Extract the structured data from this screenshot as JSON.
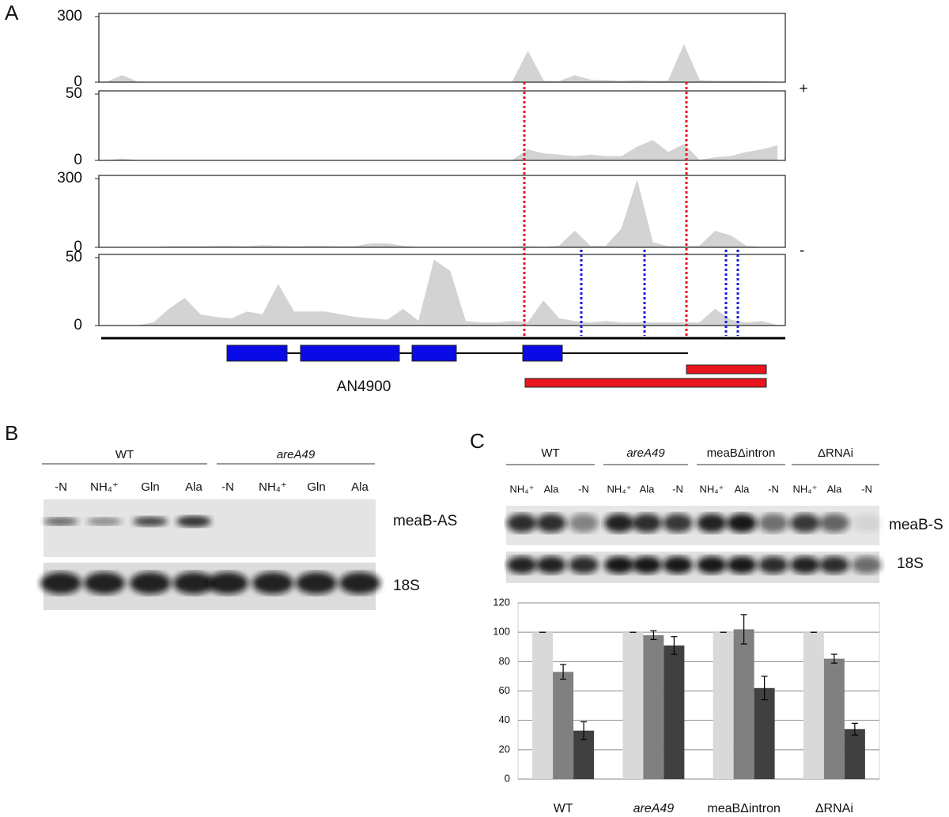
{
  "chart_data": [
    {
      "type": "area",
      "ylim": [
        0,
        300
      ],
      "yticks": [
        0,
        300
      ],
      "color": "#d3d3d3",
      "values": [
        0,
        30,
        0,
        0,
        0,
        0,
        0,
        0,
        0,
        0,
        0,
        0,
        0,
        0,
        0,
        0,
        0,
        0,
        0,
        0,
        0,
        0,
        0,
        0,
        0,
        0,
        0,
        140,
        5,
        3,
        30,
        10,
        8,
        5,
        8,
        5,
        5,
        170,
        8,
        5,
        5,
        5,
        4,
        0
      ]
    },
    {
      "type": "area",
      "ylim": [
        0,
        50
      ],
      "yticks": [
        0,
        50
      ],
      "color": "#d3d3d3",
      "values": [
        0,
        1,
        0,
        0,
        0,
        0,
        0,
        0,
        0,
        0,
        0,
        0,
        0,
        0,
        0,
        0,
        0,
        0,
        0,
        0,
        0,
        0,
        0,
        0,
        0,
        0,
        0,
        8,
        5,
        4,
        3,
        4,
        3,
        3,
        10,
        15,
        6,
        12,
        0,
        2,
        3,
        6,
        8,
        11
      ]
    },
    {
      "type": "area",
      "ylim": [
        0,
        300
      ],
      "yticks": [
        0,
        300
      ],
      "color": "#d3d3d3",
      "values": [
        0,
        0,
        0,
        0,
        3,
        3,
        3,
        5,
        5,
        3,
        8,
        5,
        3,
        5,
        5,
        3,
        5,
        15,
        15,
        5,
        0,
        0,
        0,
        0,
        0,
        0,
        0,
        3,
        0,
        5,
        70,
        5,
        5,
        80,
        290,
        20,
        3,
        3,
        5,
        70,
        50,
        5,
        0,
        0
      ]
    },
    {
      "type": "area",
      "ylim": [
        0,
        50
      ],
      "yticks": [
        0,
        50
      ],
      "color": "#d3d3d3",
      "values": [
        0,
        0,
        0,
        2,
        12,
        20,
        8,
        6,
        5,
        10,
        8,
        30,
        10,
        10,
        10,
        8,
        6,
        5,
        4,
        12,
        3,
        48,
        40,
        3,
        2,
        2,
        3,
        2,
        18,
        5,
        3,
        2,
        3,
        2,
        2,
        2,
        2,
        2,
        2,
        12,
        4,
        2,
        3,
        0
      ]
    },
    {
      "type": "bar",
      "categories": [
        "WT",
        "areA49",
        "meaBΔintron",
        "ΔRNAi"
      ],
      "ylim": [
        0,
        120
      ],
      "yticks": [
        0,
        20,
        40,
        60,
        80,
        100,
        120
      ],
      "grid": true,
      "series": [
        {
          "color": "#d9d9d9",
          "values": [
            100,
            100,
            100,
            100
          ],
          "errors": [
            0,
            0,
            0,
            0
          ]
        },
        {
          "color": "#808080",
          "values": [
            73,
            98,
            102,
            82
          ],
          "errors": [
            5,
            3,
            10,
            3
          ]
        },
        {
          "color": "#404040",
          "values": [
            33,
            91,
            62,
            34
          ],
          "errors": [
            6,
            6,
            8,
            4
          ]
        }
      ]
    }
  ],
  "panel_a": {
    "label": "A",
    "strand_plus": "+",
    "strand_minus": "-",
    "gene": "AN4900"
  },
  "panel_b": {
    "label": "B",
    "groups": [
      "WT",
      "areA49"
    ],
    "lanes": [
      "-N",
      "NH₄⁺",
      "Gln",
      "Ala",
      "-N",
      "NH₄⁺",
      "Gln",
      "Ala"
    ],
    "probes": [
      "meaB-AS",
      "18S"
    ]
  },
  "panel_c": {
    "label": "C",
    "groups": [
      "WT",
      "areA49",
      "meaBΔintron",
      "ΔRNAi"
    ],
    "lanes": [
      "NH₄⁺",
      "Ala",
      "-N",
      "NH₄⁺",
      "Ala",
      "-N",
      "NH₄⁺",
      "Ala",
      "-N",
      "NH₄⁺",
      "Ala",
      "-N"
    ],
    "probes": [
      "meaB-S",
      "18S"
    ]
  }
}
